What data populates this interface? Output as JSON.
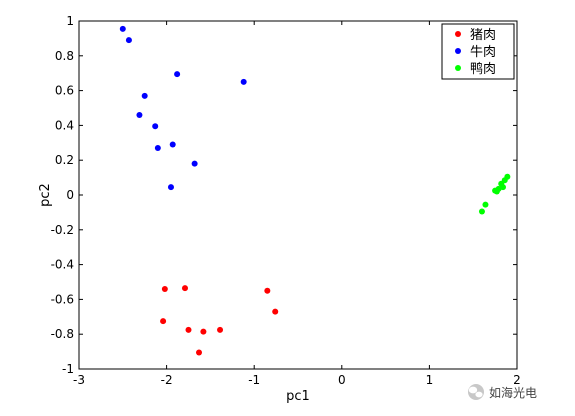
{
  "chart_data": {
    "type": "scatter",
    "xlabel": "pc1",
    "ylabel": "pc2",
    "xlim": [
      -3,
      2
    ],
    "ylim": [
      -1,
      1
    ],
    "xticks": [
      -3,
      -2,
      -1,
      0,
      1,
      2
    ],
    "yticks": [
      -1,
      -0.8,
      -0.6,
      -0.4,
      -0.2,
      0,
      0.2,
      0.4,
      0.6,
      0.8,
      1
    ],
    "xtick_labels": [
      "-3",
      "-2",
      "-1",
      "0",
      "1",
      "2"
    ],
    "ytick_labels": [
      "-1",
      "-0.8",
      "-0.6",
      "-0.4",
      "-0.2",
      "0",
      "0.2",
      "0.4",
      "0.6",
      "0.8",
      "1"
    ],
    "grid": false,
    "legend_position": "top-right",
    "series": [
      {
        "name": "猪肉",
        "color": "#ff0000",
        "points": [
          {
            "x": -2.02,
            "y": -0.54
          },
          {
            "x": -1.79,
            "y": -0.535
          },
          {
            "x": -0.85,
            "y": -0.55
          },
          {
            "x": -0.76,
            "y": -0.67
          },
          {
            "x": -2.04,
            "y": -0.725
          },
          {
            "x": -1.75,
            "y": -0.775
          },
          {
            "x": -1.58,
            "y": -0.785
          },
          {
            "x": -1.39,
            "y": -0.775
          },
          {
            "x": -1.63,
            "y": -0.905
          }
        ]
      },
      {
        "name": "牛肉",
        "color": "#0000ff",
        "points": [
          {
            "x": -2.5,
            "y": 0.955
          },
          {
            "x": -2.43,
            "y": 0.89
          },
          {
            "x": -1.88,
            "y": 0.695
          },
          {
            "x": -1.12,
            "y": 0.65
          },
          {
            "x": -2.25,
            "y": 0.57
          },
          {
            "x": -2.31,
            "y": 0.46
          },
          {
            "x": -2.13,
            "y": 0.395
          },
          {
            "x": -1.93,
            "y": 0.29
          },
          {
            "x": -2.1,
            "y": 0.27
          },
          {
            "x": -1.68,
            "y": 0.18
          },
          {
            "x": -1.95,
            "y": 0.045
          }
        ]
      },
      {
        "name": "鸭肉",
        "color": "#00ff00",
        "points": [
          {
            "x": 1.89,
            "y": 0.105
          },
          {
            "x": 1.86,
            "y": 0.085
          },
          {
            "x": 1.82,
            "y": 0.065
          },
          {
            "x": 1.84,
            "y": 0.045
          },
          {
            "x": 1.79,
            "y": 0.035
          },
          {
            "x": 1.77,
            "y": 0.02
          },
          {
            "x": 1.75,
            "y": 0.025
          },
          {
            "x": 1.64,
            "y": -0.055
          },
          {
            "x": 1.6,
            "y": -0.095
          }
        ]
      }
    ]
  },
  "watermark": {
    "text": "如海光电",
    "icon": "wechat-icon"
  }
}
